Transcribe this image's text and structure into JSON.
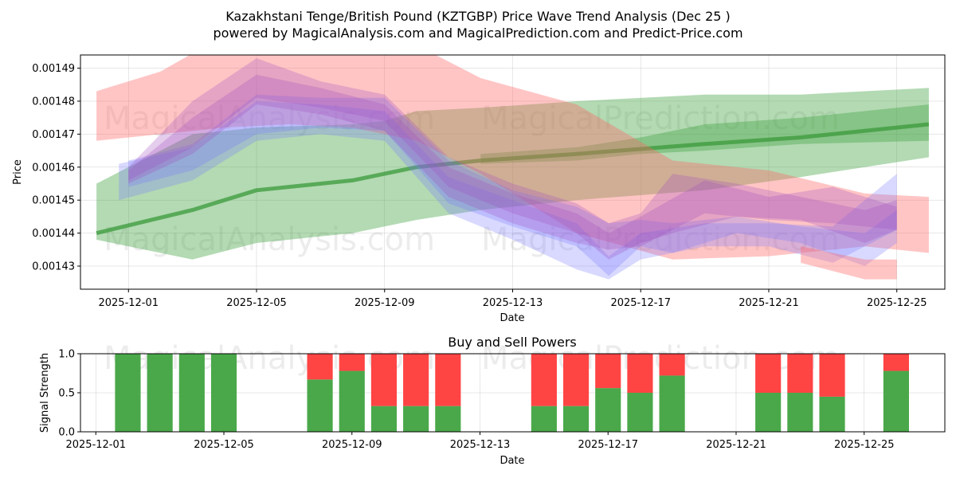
{
  "colors": {
    "green_band": "#4aa84a",
    "green_line": "#3a9a3a",
    "red_band": "#ff6666",
    "blue_band": "#7777ff",
    "purple_band": "#a050c0",
    "buy": "#4aa84a",
    "sell": "#ff4444",
    "grid": "#b0b0b0"
  },
  "chart_data": [
    {
      "type": "line",
      "title_line1": "Kazakhstani Tenge/British Pound (KZTGBP) Price Wave Trend Analysis (Dec 25 )",
      "title_line2": "powered by MagicalAnalysis.com and MagicalPrediction.com and Predict-Price.com",
      "xlabel": "Date",
      "ylabel": "Price",
      "watermarks": [
        "MagicalAnalysis.com",
        "MagicalPrediction.com"
      ],
      "xlim": [
        -0.5,
        26.5
      ],
      "ylim": [
        0.001423,
        0.001494
      ],
      "x_ticks": [
        {
          "day": 1,
          "label": "2025-12-01"
        },
        {
          "day": 5,
          "label": "2025-12-05"
        },
        {
          "day": 9,
          "label": "2025-12-09"
        },
        {
          "day": 13,
          "label": "2025-12-13"
        },
        {
          "day": 17,
          "label": "2025-12-17"
        },
        {
          "day": 21,
          "label": "2025-12-21"
        },
        {
          "day": 25,
          "label": "2025-12-25"
        }
      ],
      "y_ticks": [
        {
          "value": 0.00143,
          "label": "0.00143"
        },
        {
          "value": 0.00144,
          "label": "0.00144"
        },
        {
          "value": 0.00145,
          "label": "0.00145"
        },
        {
          "value": 0.00146,
          "label": "0.00146"
        },
        {
          "value": 0.00147,
          "label": "0.00147"
        },
        {
          "value": 0.00148,
          "label": "0.00148"
        },
        {
          "value": 0.00149,
          "label": "0.00149"
        }
      ],
      "series": [
        {
          "name": "green wide band",
          "kind": "band",
          "color": "green",
          "x": [
            0,
            3,
            5,
            8,
            9,
            10,
            12,
            15,
            19,
            22,
            26
          ],
          "upper": [
            0.001455,
            0.00147,
            0.001472,
            0.001473,
            0.001474,
            0.001477,
            0.001478,
            0.00148,
            0.001482,
            0.001482,
            0.001484
          ],
          "lower": [
            0.001438,
            0.001432,
            0.001437,
            0.00144,
            0.001442,
            0.001444,
            0.001447,
            0.00145,
            0.001453,
            0.001457,
            0.001463
          ]
        },
        {
          "name": "green narrow band",
          "kind": "band",
          "color": "green",
          "x": [
            12,
            15,
            17,
            19,
            22,
            26
          ],
          "upper": [
            0.001464,
            0.001466,
            0.001469,
            0.001473,
            0.001475,
            0.001479
          ],
          "lower": [
            0.001461,
            0.001462,
            0.001464,
            0.001465,
            0.001467,
            0.001468
          ]
        },
        {
          "name": "green trend line",
          "kind": "line",
          "color": "green_line",
          "x": [
            0,
            3,
            5,
            8,
            9,
            10,
            12,
            15,
            19,
            22,
            26
          ],
          "values": [
            0.00144,
            0.001447,
            0.001453,
            0.001456,
            0.001458,
            0.00146,
            0.001462,
            0.001464,
            0.001467,
            0.001469,
            0.001473
          ]
        },
        {
          "name": "red band",
          "kind": "band",
          "color": "red",
          "x": [
            0,
            2,
            4,
            6,
            8,
            10,
            12,
            15,
            18,
            21,
            24,
            26
          ],
          "upper": [
            0.001483,
            0.001489,
            0.0015,
            0.0015,
            0.0015,
            0.001497,
            0.001487,
            0.001479,
            0.001462,
            0.001459,
            0.001452,
            0.001451
          ],
          "lower": [
            0.001468,
            0.00147,
            0.001472,
            0.001473,
            0.001472,
            0.001468,
            0.001458,
            0.00144,
            0.001432,
            0.001433,
            0.001436,
            0.001434
          ]
        },
        {
          "name": "blue band A",
          "kind": "band",
          "color": "blue",
          "x": [
            1,
            3,
            5,
            7,
            9,
            11,
            13,
            15,
            16,
            17,
            18,
            20,
            22,
            24,
            25
          ],
          "upper": [
            0.001462,
            0.001467,
            0.001482,
            0.001481,
            0.001481,
            0.001462,
            0.001453,
            0.001448,
            0.001443,
            0.001444,
            0.001443,
            0.001445,
            0.001442,
            0.00144,
            0.001447
          ],
          "lower": [
            0.001454,
            0.001459,
            0.00147,
            0.001472,
            0.001471,
            0.001449,
            0.001442,
            0.001436,
            0.001427,
            0.001436,
            0.001434,
            0.00144,
            0.001437,
            0.00143,
            0.001437
          ]
        },
        {
          "name": "blue band B",
          "kind": "band",
          "color": "blue",
          "x": [
            0.7,
            3,
            5,
            7,
            9,
            11,
            13,
            15,
            16,
            17,
            19,
            21,
            23,
            25
          ],
          "upper": [
            0.001461,
            0.001466,
            0.00148,
            0.001479,
            0.001477,
            0.001457,
            0.00145,
            0.001443,
            0.001433,
            0.00144,
            0.001443,
            0.001443,
            0.001442,
            0.001458
          ],
          "lower": [
            0.00145,
            0.001456,
            0.001468,
            0.00147,
            0.001468,
            0.001446,
            0.001438,
            0.001429,
            0.001426,
            0.001432,
            0.001436,
            0.001436,
            0.001431,
            0.001441
          ]
        },
        {
          "name": "purple band A",
          "kind": "band",
          "color": "purple",
          "x": [
            1,
            3,
            5,
            7,
            9,
            11,
            13,
            15,
            16,
            17,
            18,
            20,
            22,
            24,
            25
          ],
          "upper": [
            0.00146,
            0.00148,
            0.001493,
            0.001486,
            0.001482,
            0.001463,
            0.001455,
            0.001449,
            0.001443,
            0.001446,
            0.001458,
            0.001455,
            0.001451,
            0.001447,
            0.00145
          ],
          "lower": [
            0.001456,
            0.001466,
            0.001481,
            0.001478,
            0.001474,
            0.001454,
            0.001446,
            0.00144,
            0.001432,
            0.001437,
            0.00144,
            0.001445,
            0.001444,
            0.001437,
            0.001441
          ]
        },
        {
          "name": "purple band B",
          "kind": "band",
          "color": "purple",
          "x": [
            1,
            3,
            5,
            7,
            9,
            11,
            13,
            15,
            16,
            17,
            19,
            21,
            23,
            25
          ],
          "upper": [
            0.001459,
            0.001475,
            0.001488,
            0.001484,
            0.001479,
            0.00146,
            0.001452,
            0.001446,
            0.00144,
            0.001445,
            0.001456,
            0.001451,
            0.001454,
            0.001448
          ],
          "lower": [
            0.001455,
            0.001464,
            0.001479,
            0.001476,
            0.001471,
            0.001451,
            0.001443,
            0.001437,
            0.001435,
            0.001436,
            0.001446,
            0.001444,
            0.001443,
            0.001441
          ]
        },
        {
          "name": "pink tail band",
          "kind": "band",
          "color": "red",
          "x": [
            22,
            24,
            25
          ],
          "upper": [
            0.001436,
            0.001432,
            0.001432
          ],
          "lower": [
            0.001431,
            0.001426,
            0.001426
          ]
        }
      ]
    },
    {
      "type": "bar",
      "title": "Buy and Sell Powers",
      "xlabel": "Date",
      "ylabel": "Signal Strength",
      "xlim": [
        -0.5,
        26.5
      ],
      "ylim": [
        0,
        1.0
      ],
      "x_ticks": [
        {
          "day": 1,
          "label": "2025-12-01"
        },
        {
          "day": 5,
          "label": "2025-12-05"
        },
        {
          "day": 9,
          "label": "2025-12-09"
        },
        {
          "day": 13,
          "label": "2025-12-13"
        },
        {
          "day": 17,
          "label": "2025-12-17"
        },
        {
          "day": 21,
          "label": "2025-12-21"
        },
        {
          "day": 25,
          "label": "2025-12-25"
        }
      ],
      "y_ticks": [
        {
          "value": 0.0,
          "label": "0.0"
        },
        {
          "value": 0.5,
          "label": "0.5"
        },
        {
          "value": 1.0,
          "label": "1.0"
        }
      ],
      "bars": [
        {
          "day": 2,
          "buy": 1.0,
          "sell": 0.0
        },
        {
          "day": 3,
          "buy": 1.0,
          "sell": 0.0
        },
        {
          "day": 4,
          "buy": 1.0,
          "sell": 0.0
        },
        {
          "day": 5,
          "buy": 1.0,
          "sell": 0.0
        },
        {
          "day": 8,
          "buy": 0.67,
          "sell": 0.33
        },
        {
          "day": 9,
          "buy": 0.78,
          "sell": 0.22
        },
        {
          "day": 10,
          "buy": 0.33,
          "sell": 0.67
        },
        {
          "day": 11,
          "buy": 0.33,
          "sell": 0.67
        },
        {
          "day": 12,
          "buy": 0.33,
          "sell": 0.67
        },
        {
          "day": 15,
          "buy": 0.33,
          "sell": 0.67
        },
        {
          "day": 16,
          "buy": 0.33,
          "sell": 0.67
        },
        {
          "day": 17,
          "buy": 0.56,
          "sell": 0.44
        },
        {
          "day": 18,
          "buy": 0.5,
          "sell": 0.5
        },
        {
          "day": 19,
          "buy": 0.72,
          "sell": 0.28
        },
        {
          "day": 22,
          "buy": 0.5,
          "sell": 0.5
        },
        {
          "day": 23,
          "buy": 0.5,
          "sell": 0.5
        },
        {
          "day": 24,
          "buy": 0.45,
          "sell": 0.55
        },
        {
          "day": 26,
          "buy": 0.78,
          "sell": 0.22
        }
      ]
    }
  ]
}
